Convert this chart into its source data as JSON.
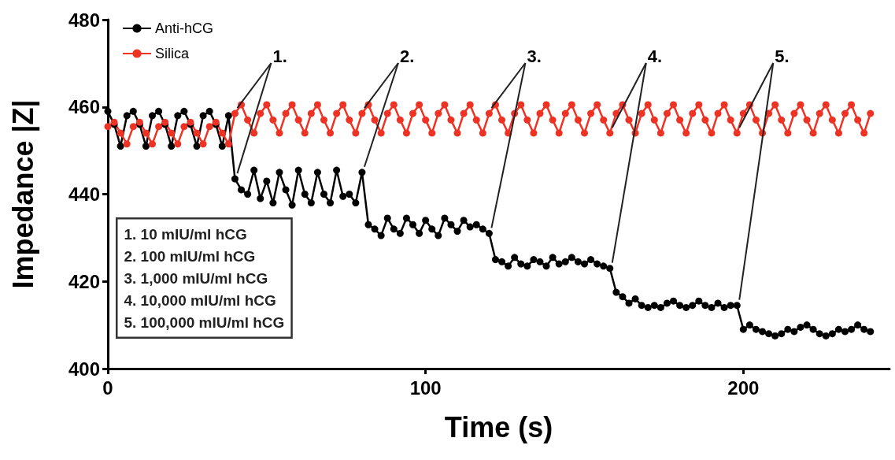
{
  "chart_data": {
    "type": "line",
    "xlabel": "Time (s)",
    "ylabel": "Impedance |Z|",
    "x": [
      0,
      2,
      4,
      6,
      8,
      10,
      12,
      14,
      16,
      18,
      20,
      22,
      24,
      26,
      28,
      30,
      32,
      34,
      36,
      38,
      40,
      42,
      44,
      46,
      48,
      50,
      52,
      54,
      56,
      58,
      60,
      62,
      64,
      66,
      68,
      70,
      72,
      74,
      76,
      78,
      80,
      82,
      84,
      86,
      88,
      90,
      92,
      94,
      96,
      98,
      100,
      102,
      104,
      106,
      108,
      110,
      112,
      114,
      116,
      118,
      120,
      122,
      124,
      126,
      128,
      130,
      132,
      134,
      136,
      138,
      140,
      142,
      144,
      146,
      148,
      150,
      152,
      154,
      156,
      158,
      160,
      162,
      164,
      166,
      168,
      170,
      172,
      174,
      176,
      178,
      180,
      182,
      184,
      186,
      188,
      190,
      192,
      194,
      196,
      198,
      200,
      202,
      204,
      206,
      208,
      210,
      212,
      214,
      216,
      218,
      220,
      222,
      224,
      226,
      228,
      230,
      232,
      234,
      236,
      238,
      240
    ],
    "series": [
      {
        "name": "Anti-hCG",
        "color": "#000000",
        "values": [
          459,
          456,
          451,
          458,
          459,
          456,
          451,
          458,
          459,
          456,
          451,
          458,
          459,
          456,
          451,
          458,
          459,
          456,
          451,
          458,
          443.5,
          441,
          440,
          445.5,
          439,
          443,
          438,
          445,
          441,
          437.5,
          445.5,
          440,
          438,
          445,
          440,
          438,
          445.5,
          439.5,
          440,
          438,
          445,
          433,
          432,
          430.5,
          434.5,
          432,
          431,
          434.5,
          433,
          431,
          434,
          432,
          430.5,
          434.5,
          433,
          431.5,
          434,
          432.5,
          433,
          432,
          431,
          425,
          424.5,
          423.5,
          425.5,
          424,
          423.5,
          425,
          424.5,
          423.5,
          425.5,
          424,
          424.5,
          425.5,
          424.5,
          424,
          425,
          424,
          423.5,
          423,
          417.5,
          416.5,
          415,
          416,
          414.5,
          414,
          414.5,
          414,
          415,
          415.5,
          414.5,
          414,
          414.5,
          415.5,
          414.5,
          414,
          415,
          414,
          414.5,
          414.5,
          409,
          410,
          409,
          408.5,
          408,
          407.5,
          408,
          409,
          408.5,
          409.5,
          410,
          409,
          408,
          407.5,
          408,
          409,
          408.5,
          409,
          410,
          409,
          408.5
        ]
      },
      {
        "name": "Silica",
        "color": "#ee3224",
        "values": [
          455.5,
          456.5,
          454,
          451.5,
          455.5,
          456.5,
          454,
          451.5,
          455.5,
          456.5,
          454,
          451.5,
          455.5,
          456.5,
          454,
          451.5,
          455.5,
          456.5,
          454,
          451.5,
          458.5,
          460.5,
          457,
          454,
          458.5,
          460.5,
          457,
          454,
          458.5,
          460.5,
          457,
          454,
          458.5,
          460.5,
          457,
          454,
          458.5,
          460.5,
          457,
          454,
          458.5,
          460.5,
          457,
          454,
          458.5,
          460.5,
          457,
          454,
          458.5,
          460.5,
          457,
          454,
          458.5,
          460.5,
          457,
          454,
          458.5,
          460.5,
          457,
          454,
          458.5,
          460.5,
          457,
          454,
          458.5,
          460.5,
          457,
          454,
          458.5,
          460.5,
          457,
          454,
          458.5,
          460.5,
          457,
          454,
          458.5,
          460.5,
          457,
          454,
          458.5,
          460.5,
          457,
          454,
          458.5,
          460.5,
          457,
          454,
          458.5,
          460.5,
          457,
          454,
          458.5,
          460.5,
          457,
          454,
          458.5,
          460.5,
          457,
          454,
          458.5,
          460.5,
          457,
          454,
          458.5,
          460.5,
          457,
          454,
          458.5,
          460.5,
          457,
          454,
          458.5,
          460.5,
          457,
          454,
          458.5,
          460.5,
          457,
          454,
          458.5
        ]
      }
    ],
    "xlim": [
      0,
      246
    ],
    "xticks": [
      0,
      100,
      200
    ],
    "ylim": [
      400,
      480
    ],
    "yticks": [
      400,
      420,
      440,
      460,
      480
    ],
    "grid": false,
    "legend": "top left",
    "marker": "circle",
    "line_style": "solid",
    "annotations": [
      {
        "text": "1.",
        "x": 40,
        "y": 458.5
      },
      {
        "text": "2.",
        "x": 80,
        "y": 445
      },
      {
        "text": "3.",
        "x": 120,
        "y": 431
      },
      {
        "text": "4.",
        "x": 158,
        "y": 423
      },
      {
        "text": "5.",
        "x": 198,
        "y": 414.5
      },
      "1. 10 mIU/ml hCG",
      "2. 100 mIU/ml hCG",
      "3. 1,000 mIU/ml hCG",
      "4. 10,000 mIU/ml hCG",
      "5. 100,000 mIU/ml hCG"
    ]
  }
}
